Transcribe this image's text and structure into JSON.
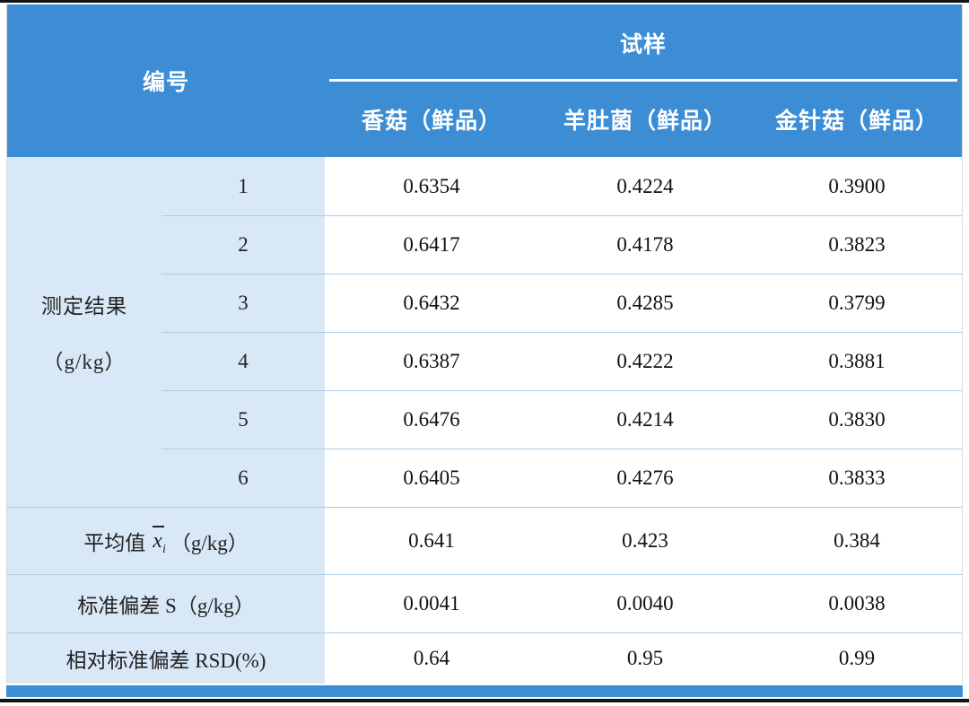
{
  "table": {
    "header": {
      "id_label": "编号",
      "sample_group_label": "试样",
      "sample_columns": [
        "香菇（鲜品）",
        "羊肚菌（鲜品）",
        "金针菇（鲜品）"
      ]
    },
    "measurement": {
      "label_line1": "测定结果",
      "label_line2": "（g/kg）",
      "rows": [
        {
          "no": "1",
          "values": [
            "0.6354",
            "0.4224",
            "0.3900"
          ]
        },
        {
          "no": "2",
          "values": [
            "0.6417",
            "0.4178",
            "0.3823"
          ]
        },
        {
          "no": "3",
          "values": [
            "0.6432",
            "0.4285",
            "0.3799"
          ]
        },
        {
          "no": "4",
          "values": [
            "0.6387",
            "0.4222",
            "0.3881"
          ]
        },
        {
          "no": "5",
          "values": [
            "0.6476",
            "0.4214",
            "0.3830"
          ]
        },
        {
          "no": "6",
          "values": [
            "0.6405",
            "0.4276",
            "0.3833"
          ]
        }
      ]
    },
    "summary": {
      "mean": {
        "prefix": "平均值",
        "var": "x",
        "sub": "i",
        "suffix": "（g/kg）",
        "values": [
          "0.641",
          "0.423",
          "0.384"
        ]
      },
      "sd": {
        "label": "标准偏差 S（g/kg）",
        "values": [
          "0.0041",
          "0.0040",
          "0.0038"
        ]
      },
      "rsd": {
        "label": "相对标准偏差 RSD(%)",
        "values": [
          "0.64",
          "0.95",
          "0.99"
        ]
      }
    }
  },
  "colors": {
    "header_blue": "#3d8dd5",
    "label_background": "#d9e8f7",
    "row_separator": "#aecbe6",
    "rule_black": "#141414"
  },
  "chart_data": {
    "type": "table",
    "row_group_header": "编号",
    "column_group_header": "试样",
    "samples": [
      "香菇（鲜品）",
      "羊肚菌（鲜品）",
      "金针菇（鲜品）"
    ],
    "measurement_label": "测定结果（g/kg）",
    "measurements": [
      {
        "no": 1,
        "values": [
          0.6354,
          0.4224,
          0.39
        ]
      },
      {
        "no": 2,
        "values": [
          0.6417,
          0.4178,
          0.3823
        ]
      },
      {
        "no": 3,
        "values": [
          0.6432,
          0.4285,
          0.3799
        ]
      },
      {
        "no": 4,
        "values": [
          0.6387,
          0.4222,
          0.3881
        ]
      },
      {
        "no": 5,
        "values": [
          0.6476,
          0.4214,
          0.383
        ]
      },
      {
        "no": 6,
        "values": [
          0.6405,
          0.4276,
          0.3833
        ]
      }
    ],
    "mean_g_per_kg": [
      0.641,
      0.423,
      0.384
    ],
    "std_dev_S_g_per_kg": [
      0.0041,
      0.004,
      0.0038
    ],
    "RSD_percent": [
      0.64,
      0.95,
      0.99
    ]
  }
}
